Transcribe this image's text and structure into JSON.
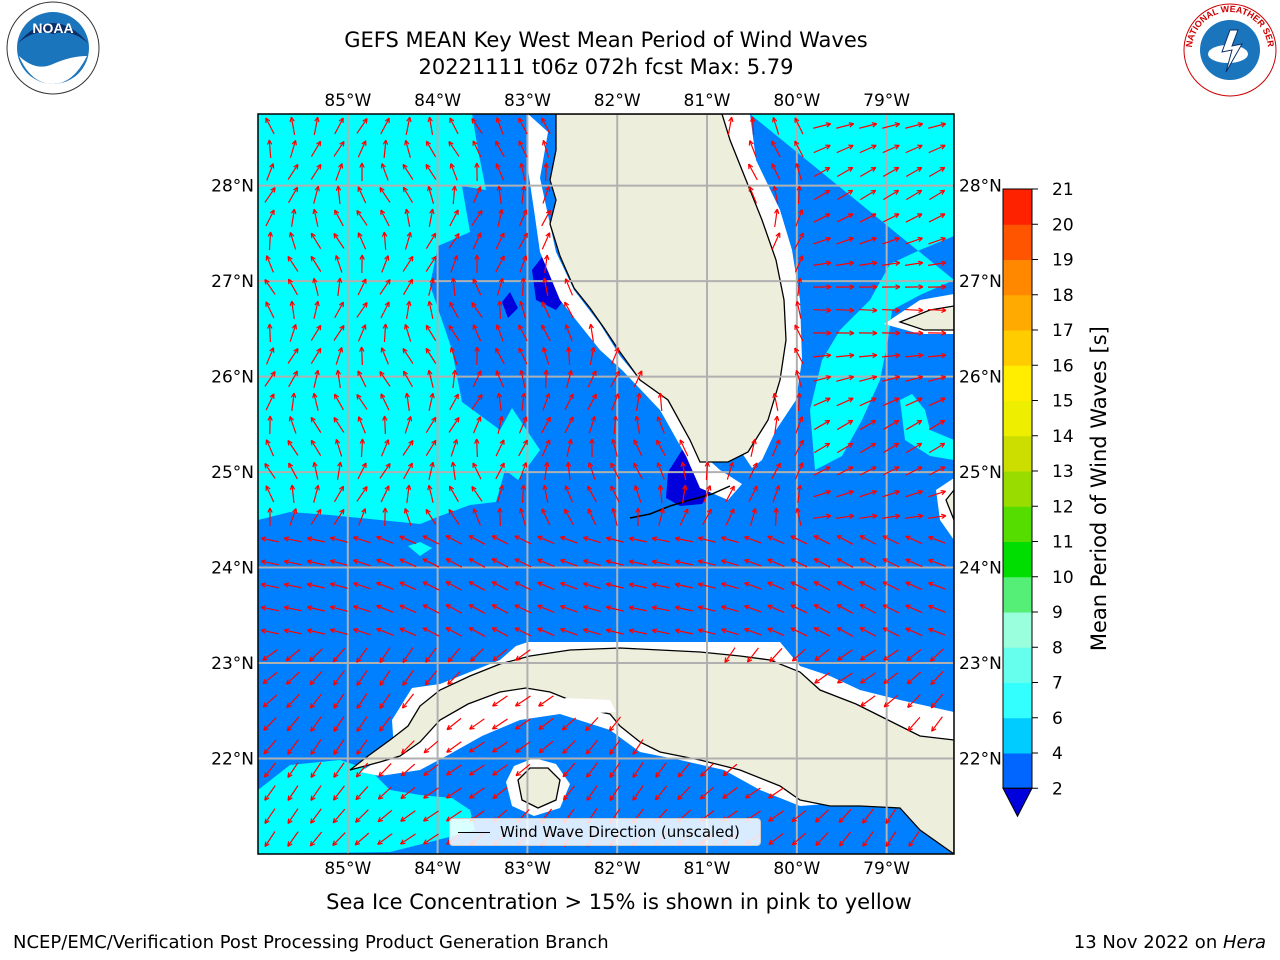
{
  "header": {
    "title_line1": "GEFS MEAN Key West Mean Period of Wind Waves",
    "title_line2": "20221111 t06z 072h fcst   Max: 5.79"
  },
  "chart_data": {
    "type": "heatmap",
    "projection": "lat-lon map",
    "xlim": [
      -86.0,
      -78.25
    ],
    "ylim": [
      21.0,
      28.75
    ],
    "x_ticks": [
      "85°W",
      "84°W",
      "83°W",
      "82°W",
      "81°W",
      "80°W",
      "79°W"
    ],
    "y_ticks": [
      "28°N",
      "27°N",
      "26°N",
      "25°N",
      "24°N",
      "23°N",
      "22°N"
    ],
    "grid": true,
    "colorbar": {
      "label": "Mean Period of Wind Waves [s]",
      "ticks": [
        "2",
        "4",
        "6",
        "7",
        "8",
        "9",
        "10",
        "11",
        "12",
        "13",
        "14",
        "15",
        "16",
        "17",
        "18",
        "19",
        "20",
        "21"
      ],
      "colors": [
        "#0066ff",
        "#00ccff",
        "#33ffff",
        "#66ffee",
        "#99ffdd",
        "#55ee77",
        "#00dd00",
        "#55dd00",
        "#99dd00",
        "#ccdd00",
        "#eeee00",
        "#ffee00",
        "#ffcc00",
        "#ffaa00",
        "#ff8800",
        "#ff5500",
        "#ff2200"
      ],
      "under_color": "#0000dd",
      "extend": "min"
    },
    "legend": {
      "label": "Wind Wave Direction (unscaled)",
      "placement": "bottom-center"
    },
    "max_value": 5.79,
    "arrow_color": "#ff0000",
    "land_color": "#eeeedd",
    "colors": {
      "cyan_band": "#00ffff",
      "blue_band": "#0080ff",
      "dark_band": "#0000dd"
    }
  },
  "note": "Sea Ice Concentration > 15% is shown in pink to yellow",
  "footer": {
    "left": "NCEP/EMC/Verification Post Processing Product Generation Branch",
    "right_prefix": "13 Nov 2022 on ",
    "right_machine": "Hera"
  },
  "logos": {
    "left": "NOAA",
    "right": "NATIONAL WEATHER SERVICE"
  }
}
